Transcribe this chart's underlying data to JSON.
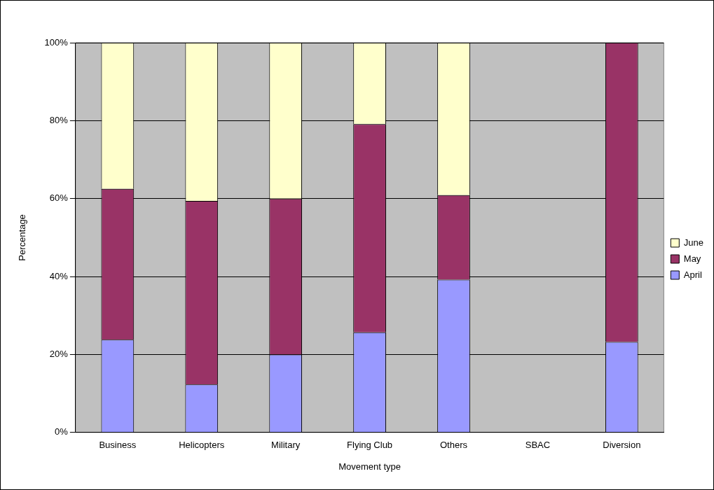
{
  "chart_data": {
    "type": "bar",
    "stacked": true,
    "xlabel": "Movement type",
    "ylabel": "Percentage",
    "categories": [
      "Business",
      "Helicopters",
      "Military",
      "Flying Club",
      "Others",
      "SBAC",
      "Diversion"
    ],
    "series": [
      {
        "name": "April",
        "color": "#9999ff",
        "values": [
          23.8,
          12.3,
          20,
          25.7,
          39.2,
          0,
          23.2
        ]
      },
      {
        "name": "May",
        "color": "#993366",
        "values": [
          38.7,
          47.1,
          40,
          53.4,
          21.7,
          0,
          76.8
        ]
      },
      {
        "name": "June",
        "color": "#ffffcc",
        "values": [
          37.5,
          40.6,
          40,
          20.9,
          39.1,
          0,
          0
        ]
      }
    ],
    "ylim": [
      0,
      100
    ],
    "yticks": [
      {
        "value": 0,
        "label": "0%"
      },
      {
        "value": 20,
        "label": "20%"
      },
      {
        "value": 40,
        "label": "40%"
      },
      {
        "value": 60,
        "label": "60%"
      },
      {
        "value": 80,
        "label": "80%"
      },
      {
        "value": 100,
        "label": "100%"
      }
    ],
    "grid": "y",
    "legend": "right"
  }
}
